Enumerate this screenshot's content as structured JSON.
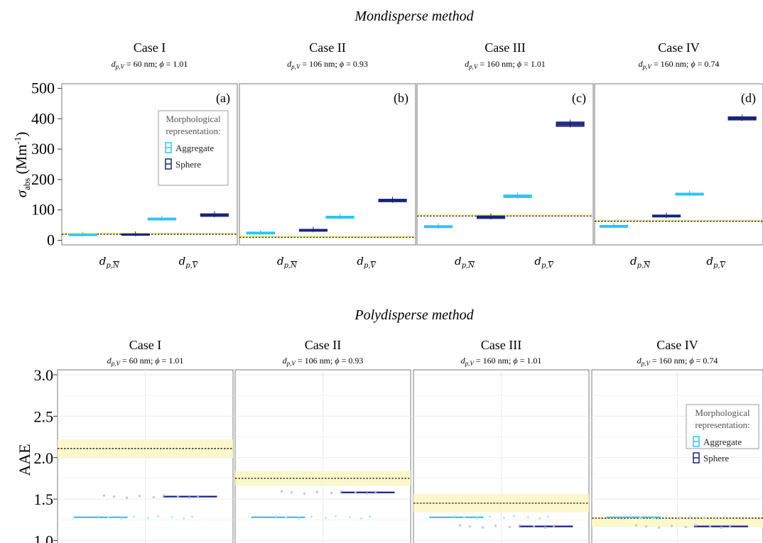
{
  "chart_data": {
    "type": "box",
    "top": {
      "title": "Mondisperse method",
      "ylabel_symbol": "σ",
      "ylabel_sub": "abs",
      "ylabel_unit": "(Mm",
      "ylabel_sup": "-1",
      "ylabel_close": ")",
      "y_ticks": [
        "0",
        "100",
        "200",
        "300",
        "400",
        "500"
      ],
      "ylim": [
        -15,
        515
      ],
      "categories": [
        {
          "base": "d",
          "sub": "p,",
          "letter": "N"
        },
        {
          "base": "d",
          "sub": "p,",
          "letter": "V"
        }
      ],
      "series": [
        {
          "name": "Aggregate",
          "color": "#29c5f6"
        },
        {
          "name": "Sphere",
          "color": "#1a237e"
        }
      ],
      "legend": {
        "title_line1": "Morphological",
        "title_line2": "representation:",
        "position": "inside panel (a)"
      },
      "panels": [
        {
          "case": "Case I",
          "dval": "60 nm",
          "phival": "1.01",
          "letter": "(a)",
          "ref": 20,
          "boxes": [
            {
              "x": 0,
              "series": 0,
              "q1": 17,
              "med": 18,
              "q3": 19
            },
            {
              "x": 0,
              "series": 1,
              "q1": 18,
              "med": 19,
              "q3": 20
            },
            {
              "x": 1,
              "series": 0,
              "q1": 68,
              "med": 70,
              "q3": 72
            },
            {
              "x": 1,
              "series": 1,
              "q1": 80,
              "med": 83,
              "q3": 86
            }
          ]
        },
        {
          "case": "Case II",
          "dval": "106 nm",
          "phival": "0.93",
          "letter": "(b)",
          "ref": 10,
          "boxes": [
            {
              "x": 0,
              "series": 0,
              "q1": 22,
              "med": 24,
              "q3": 26
            },
            {
              "x": 0,
              "series": 1,
              "q1": 31,
              "med": 33,
              "q3": 35
            },
            {
              "x": 1,
              "series": 0,
              "q1": 74,
              "med": 76,
              "q3": 78
            },
            {
              "x": 1,
              "series": 1,
              "q1": 128,
              "med": 131,
              "q3": 134
            }
          ]
        },
        {
          "case": "Case III",
          "dval": "160 nm",
          "phival": "1.01",
          "letter": "(c)",
          "ref": 80,
          "boxes": [
            {
              "x": 0,
              "series": 0,
              "q1": 43,
              "med": 45,
              "q3": 47
            },
            {
              "x": 0,
              "series": 1,
              "q1": 73,
              "med": 76,
              "q3": 79
            },
            {
              "x": 1,
              "series": 0,
              "q1": 142,
              "med": 145,
              "q3": 148
            },
            {
              "x": 1,
              "series": 1,
              "q1": 376,
              "med": 382,
              "q3": 388
            }
          ]
        },
        {
          "case": "Case IV",
          "dval": "160 nm",
          "phival": "0.74",
          "letter": "(d)",
          "ref": 63,
          "boxes": [
            {
              "x": 0,
              "series": 0,
              "q1": 44,
              "med": 46,
              "q3": 48
            },
            {
              "x": 0,
              "series": 1,
              "q1": 78,
              "med": 80,
              "q3": 82
            },
            {
              "x": 1,
              "series": 0,
              "q1": 150,
              "med": 152,
              "q3": 154
            },
            {
              "x": 1,
              "series": 1,
              "q1": 397,
              "med": 401,
              "q3": 405
            }
          ]
        }
      ]
    },
    "bottom": {
      "title": "Polydisperse method",
      "ylabel": "AAE",
      "y_ticks": [
        "1.0",
        "1.5",
        "2.0",
        "2.5",
        "3.0"
      ],
      "ylim": [
        0.97,
        3.06
      ],
      "legend": {
        "title_line1": "Morphological",
        "title_line2": "representation:",
        "position": "inside Case IV panel, top-right"
      },
      "panels": [
        {
          "case": "Case I",
          "dval": "60 nm",
          "phival": "1.01",
          "ref": 2.11,
          "band": [
            2.0,
            2.22
          ],
          "medians": [
            {
              "series": 0,
              "value": 1.28
            },
            {
              "series": 1,
              "value": 1.53
            }
          ],
          "points": [
            {
              "series": 0,
              "value": 1.28
            },
            {
              "series": 1,
              "value": 1.53
            }
          ]
        },
        {
          "case": "Case II",
          "dval": "106 nm",
          "phival": "0.93",
          "ref": 1.75,
          "band": [
            1.66,
            1.84
          ],
          "medians": [
            {
              "series": 0,
              "value": 1.28
            },
            {
              "series": 1,
              "value": 1.58
            }
          ],
          "points": [
            {
              "series": 0,
              "value": 1.28
            },
            {
              "series": 1,
              "value": 1.58
            }
          ]
        },
        {
          "case": "Case III",
          "dval": "160 nm",
          "phival": "1.01",
          "ref": 1.45,
          "band": [
            1.34,
            1.56
          ],
          "medians": [
            {
              "series": 0,
              "value": 1.28
            },
            {
              "series": 1,
              "value": 1.17
            }
          ],
          "points": [
            {
              "series": 0,
              "value": 1.28
            },
            {
              "series": 1,
              "value": 1.17
            }
          ]
        },
        {
          "case": "Case IV",
          "dval": "160 nm",
          "phival": "0.74",
          "ref": 1.27,
          "band": [
            1.16,
            1.29
          ],
          "medians": [
            {
              "series": 0,
              "value": 1.28
            },
            {
              "series": 1,
              "value": 1.17
            }
          ],
          "points": [
            {
              "series": 0,
              "value": 1.28
            },
            {
              "series": 1,
              "value": 1.17
            }
          ]
        }
      ]
    }
  }
}
